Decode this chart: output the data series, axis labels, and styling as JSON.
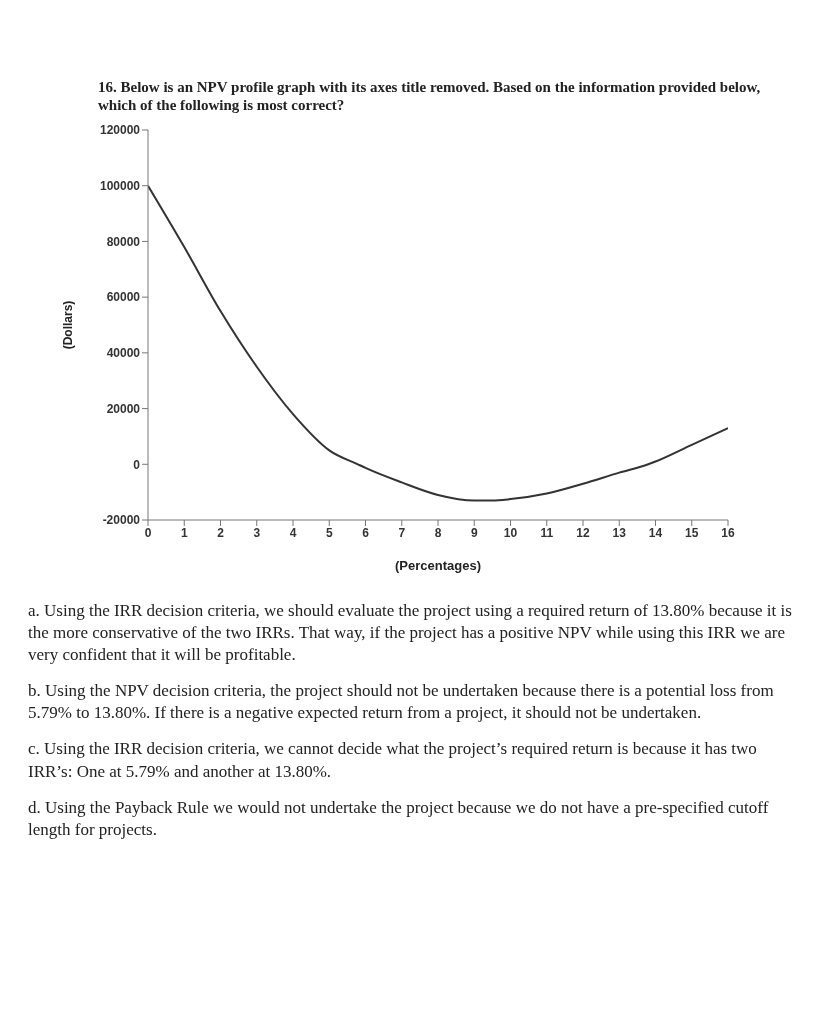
{
  "chart_data": {
    "type": "line",
    "title": "16. Below is an NPV profile graph with its axes title removed. Based on the information provided below, which of the following is most correct?",
    "xlabel": "(Percentages)",
    "ylabel": "(Dollars)",
    "x": [
      0,
      1,
      2,
      3,
      4,
      5,
      5.79,
      6,
      7,
      8,
      9,
      9.5,
      10,
      11,
      12,
      13,
      13.8,
      14,
      15,
      16
    ],
    "series": [
      {
        "color": "#333333",
        "values": [
          100000,
          78000,
          55000,
          35000,
          18000,
          5000,
          0,
          -1300,
          -6500,
          -11000,
          -13000,
          -13000,
          -12500,
          -10500,
          -7000,
          -3000,
          0,
          1000,
          7000,
          13000
        ]
      }
    ],
    "xlim": [
      0,
      16
    ],
    "xticks": [
      0,
      1,
      2,
      3,
      4,
      5,
      6,
      7,
      8,
      9,
      10,
      11,
      12,
      13,
      14,
      15,
      16
    ],
    "ylim": [
      -20000,
      120000
    ],
    "yticks": [
      -20000,
      0,
      20000,
      40000,
      60000,
      80000,
      100000,
      120000
    ],
    "grid": false,
    "legend": false,
    "marker": "none",
    "line_style": "solid",
    "annotations": [
      "a. Using the IRR decision criteria, we should evaluate the project using a required return of 13.80% because it is the more conservative of the two IRRs. That way, if the project has a positive NPV while using this IRR we are very confident that it will be profitable.",
      "b. Using the NPV decision criteria, the project should not be undertaken because there is a potential loss from 5.79% to 13.80%. If there is a negative expected return from a project, it should not be undertaken.",
      "c. Using the IRR decision criteria, we cannot decide what the project’s required return is because it has two IRR’s: One at 5.79% and another at 13.80%.",
      "d. Using the Payback Rule we would not undertake the project because we do not have a pre-specified cutoff length for projects."
    ]
  }
}
